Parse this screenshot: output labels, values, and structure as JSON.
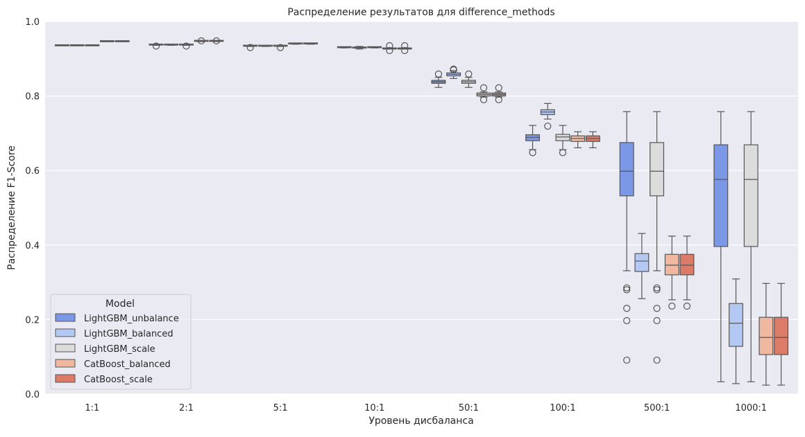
{
  "chart_data": {
    "type": "box",
    "title": "Распределение результатов для difference_methods",
    "xlabel": "Уровень дисбаланса",
    "ylabel": "Распределение F1-Score",
    "ylim": [
      0,
      1.0
    ],
    "yticks": [
      "0.0",
      "0.2",
      "0.4",
      "0.6",
      "0.8",
      "1.0"
    ],
    "grid": true,
    "legend": {
      "title": "Model",
      "position": "lower-left"
    },
    "categories": [
      "1:1",
      "2:1",
      "5:1",
      "10:1",
      "50:1",
      "100:1",
      "500:1",
      "1000:1"
    ],
    "series": [
      {
        "name": "LightGBM_unbalance",
        "color": "#7b98e6",
        "boxes": [
          {
            "q1": 0.936,
            "med": 0.936,
            "q3": 0.936,
            "lo": 0.936,
            "hi": 0.936,
            "out": []
          },
          {
            "q1": 0.936,
            "med": 0.937,
            "q3": 0.938,
            "lo": 0.936,
            "hi": 0.938,
            "out": [
              0.934
            ]
          },
          {
            "q1": 0.933,
            "med": 0.934,
            "q3": 0.935,
            "lo": 0.933,
            "hi": 0.935,
            "out": [
              0.93
            ]
          },
          {
            "q1": 0.929,
            "med": 0.93,
            "q3": 0.931,
            "lo": 0.929,
            "hi": 0.931,
            "out": []
          },
          {
            "q1": 0.834,
            "med": 0.838,
            "q3": 0.842,
            "lo": 0.823,
            "hi": 0.85,
            "out": [
              0.859
            ]
          },
          {
            "q1": 0.68,
            "med": 0.689,
            "q3": 0.696,
            "lo": 0.656,
            "hi": 0.721,
            "out": [
              0.648
            ]
          },
          {
            "q1": 0.532,
            "med": 0.598,
            "q3": 0.675,
            "lo": 0.331,
            "hi": 0.758,
            "out": [
              0.285,
              0.28,
              0.23,
              0.197,
              0.091
            ]
          },
          {
            "q1": 0.396,
            "med": 0.576,
            "q3": 0.669,
            "lo": 0.033,
            "hi": 0.758,
            "out": []
          }
        ]
      },
      {
        "name": "LightGBM_balanced",
        "color": "#b3c8f3",
        "boxes": [
          {
            "q1": 0.936,
            "med": 0.936,
            "q3": 0.936,
            "lo": 0.936,
            "hi": 0.936,
            "out": []
          },
          {
            "q1": 0.936,
            "med": 0.937,
            "q3": 0.938,
            "lo": 0.936,
            "hi": 0.938,
            "out": []
          },
          {
            "q1": 0.933,
            "med": 0.934,
            "q3": 0.935,
            "lo": 0.933,
            "hi": 0.935,
            "out": []
          },
          {
            "q1": 0.928,
            "med": 0.929,
            "q3": 0.93,
            "lo": 0.926,
            "hi": 0.933,
            "out": []
          },
          {
            "q1": 0.854,
            "med": 0.858,
            "q3": 0.862,
            "lo": 0.847,
            "hi": 0.868,
            "out": [
              0.872,
              0.87
            ]
          },
          {
            "q1": 0.75,
            "med": 0.757,
            "q3": 0.763,
            "lo": 0.738,
            "hi": 0.78,
            "out": [
              0.719
            ]
          },
          {
            "q1": 0.329,
            "med": 0.357,
            "q3": 0.377,
            "lo": 0.256,
            "hi": 0.431,
            "out": []
          },
          {
            "q1": 0.128,
            "med": 0.19,
            "q3": 0.243,
            "lo": 0.028,
            "hi": 0.309,
            "out": []
          }
        ]
      },
      {
        "name": "LightGBM_scale",
        "color": "#dcdcdc",
        "boxes": [
          {
            "q1": 0.936,
            "med": 0.936,
            "q3": 0.936,
            "lo": 0.936,
            "hi": 0.936,
            "out": []
          },
          {
            "q1": 0.936,
            "med": 0.937,
            "q3": 0.938,
            "lo": 0.936,
            "hi": 0.938,
            "out": [
              0.934
            ]
          },
          {
            "q1": 0.933,
            "med": 0.934,
            "q3": 0.935,
            "lo": 0.933,
            "hi": 0.935,
            "out": [
              0.93
            ]
          },
          {
            "q1": 0.929,
            "med": 0.93,
            "q3": 0.931,
            "lo": 0.929,
            "hi": 0.931,
            "out": []
          },
          {
            "q1": 0.834,
            "med": 0.838,
            "q3": 0.842,
            "lo": 0.823,
            "hi": 0.85,
            "out": [
              0.859
            ]
          },
          {
            "q1": 0.68,
            "med": 0.69,
            "q3": 0.697,
            "lo": 0.656,
            "hi": 0.721,
            "out": [
              0.648
            ]
          },
          {
            "q1": 0.532,
            "med": 0.598,
            "q3": 0.675,
            "lo": 0.331,
            "hi": 0.758,
            "out": [
              0.285,
              0.28,
              0.23,
              0.197,
              0.091
            ]
          },
          {
            "q1": 0.396,
            "med": 0.576,
            "q3": 0.669,
            "lo": 0.033,
            "hi": 0.758,
            "out": []
          }
        ]
      },
      {
        "name": "CatBoost_balanced",
        "color": "#f0b8a1",
        "boxes": [
          {
            "q1": 0.947,
            "med": 0.947,
            "q3": 0.947,
            "lo": 0.947,
            "hi": 0.947,
            "out": []
          },
          {
            "q1": 0.946,
            "med": 0.947,
            "q3": 0.948,
            "lo": 0.946,
            "hi": 0.948,
            "out": [
              0.948
            ]
          },
          {
            "q1": 0.939,
            "med": 0.94,
            "q3": 0.941,
            "lo": 0.939,
            "hi": 0.941,
            "out": []
          },
          {
            "q1": 0.926,
            "med": 0.928,
            "q3": 0.929,
            "lo": 0.926,
            "hi": 0.929,
            "out": [
              0.935,
              0.922
            ]
          },
          {
            "q1": 0.8,
            "med": 0.804,
            "q3": 0.808,
            "lo": 0.797,
            "hi": 0.811,
            "out": [
              0.822,
              0.79
            ]
          },
          {
            "q1": 0.678,
            "med": 0.686,
            "q3": 0.693,
            "lo": 0.661,
            "hi": 0.704,
            "out": []
          },
          {
            "q1": 0.32,
            "med": 0.346,
            "q3": 0.375,
            "lo": 0.253,
            "hi": 0.424,
            "out": [
              0.236
            ]
          },
          {
            "q1": 0.106,
            "med": 0.152,
            "q3": 0.206,
            "lo": 0.024,
            "hi": 0.297,
            "out": []
          }
        ]
      },
      {
        "name": "CatBoost_scale",
        "color": "#dc7b67",
        "boxes": [
          {
            "q1": 0.947,
            "med": 0.947,
            "q3": 0.947,
            "lo": 0.947,
            "hi": 0.947,
            "out": []
          },
          {
            "q1": 0.946,
            "med": 0.947,
            "q3": 0.948,
            "lo": 0.946,
            "hi": 0.948,
            "out": [
              0.948
            ]
          },
          {
            "q1": 0.939,
            "med": 0.94,
            "q3": 0.941,
            "lo": 0.939,
            "hi": 0.941,
            "out": []
          },
          {
            "q1": 0.926,
            "med": 0.928,
            "q3": 0.929,
            "lo": 0.926,
            "hi": 0.929,
            "out": [
              0.935,
              0.922
            ]
          },
          {
            "q1": 0.8,
            "med": 0.804,
            "q3": 0.808,
            "lo": 0.797,
            "hi": 0.811,
            "out": [
              0.822,
              0.79
            ]
          },
          {
            "q1": 0.678,
            "med": 0.686,
            "q3": 0.693,
            "lo": 0.661,
            "hi": 0.704,
            "out": []
          },
          {
            "q1": 0.32,
            "med": 0.346,
            "q3": 0.375,
            "lo": 0.253,
            "hi": 0.424,
            "out": [
              0.236
            ]
          },
          {
            "q1": 0.106,
            "med": 0.152,
            "q3": 0.206,
            "lo": 0.024,
            "hi": 0.297,
            "out": []
          }
        ]
      }
    ]
  }
}
